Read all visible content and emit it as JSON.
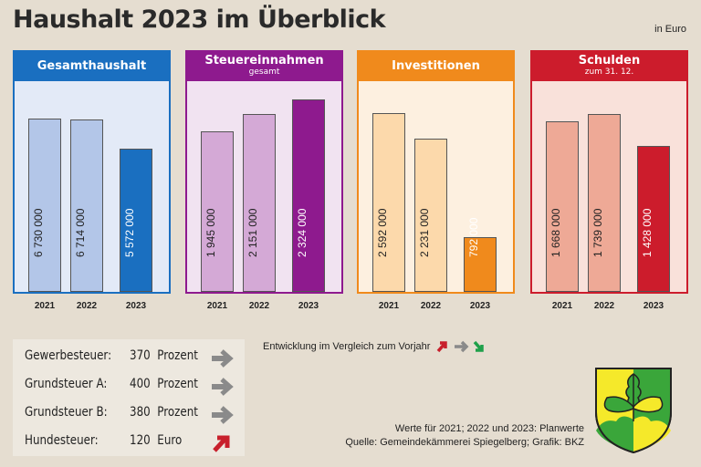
{
  "header": {
    "title": "Haushalt 2023 im Überblick",
    "unit": "in Euro"
  },
  "chart_data": [
    {
      "type": "bar",
      "title": "Gesamthaushalt",
      "subtitle": "",
      "categories": [
        "2021",
        "2022",
        "2023"
      ],
      "values": [
        6730000,
        6714000,
        5572000
      ],
      "labels": [
        "6 730 000",
        "6 714 000",
        "5 572 000"
      ],
      "ylim": [
        0,
        8200000
      ],
      "colors": {
        "header": "#1a6fc0",
        "bg": "#e3eaf7",
        "light": "#b3c6e8",
        "dark": "#1a6fc0"
      },
      "grid": false
    },
    {
      "type": "bar",
      "title": "Steuereinnahmen",
      "subtitle": "gesamt",
      "categories": [
        "2021",
        "2022",
        "2023"
      ],
      "values": [
        1945000,
        2151000,
        2324000
      ],
      "labels": [
        "1 945 000",
        "2 151 000",
        "2 324 000"
      ],
      "ylim": [
        0,
        2550000
      ],
      "colors": {
        "header": "#8e1a8e",
        "bg": "#f1e3f1",
        "light": "#d4a9d6",
        "dark": "#8e1a8e"
      },
      "grid": false
    },
    {
      "type": "bar",
      "title": "Investitionen",
      "subtitle": "",
      "categories": [
        "2021",
        "2022",
        "2023"
      ],
      "values": [
        2592000,
        2231000,
        792000
      ],
      "labels": [
        "2 592 000",
        "2 231 000",
        "792 000"
      ],
      "ylim": [
        0,
        3060000
      ],
      "colors": {
        "header": "#f08a1c",
        "bg": "#fdf0e0",
        "light": "#fcd9ab",
        "dark": "#f08a1c"
      },
      "grid": false
    },
    {
      "type": "bar",
      "title": "Schulden",
      "subtitle": "zum 31. 12.",
      "categories": [
        "2021",
        "2022",
        "2023"
      ],
      "values": [
        1668000,
        1739000,
        1428000
      ],
      "labels": [
        "1 668 000",
        "1 739 000",
        "1 428 000"
      ],
      "ylim": [
        0,
        2060000
      ],
      "colors": {
        "header": "#cc1c2c",
        "bg": "#f9e1da",
        "light": "#eea996",
        "dark": "#cc1c2c"
      },
      "grid": false
    }
  ],
  "taxes": [
    {
      "name": "Gewerbesteuer:",
      "value": "370",
      "unit": "Prozent",
      "trend": "same"
    },
    {
      "name": "Grundsteuer A:",
      "value": "400",
      "unit": "Prozent",
      "trend": "same"
    },
    {
      "name": "Grundsteuer B:",
      "value": "380",
      "unit": "Prozent",
      "trend": "same"
    },
    {
      "name": "Hundesteuer:",
      "value": "120",
      "unit": "Euro",
      "trend": "up"
    }
  ],
  "legend": {
    "text": "Entwicklung im Vergleich zum Vorjahr",
    "colors": {
      "up": "#c8202c",
      "same": "#8a8a8a",
      "down": "#1fa04a"
    }
  },
  "notes": {
    "line1": "Werte für 2021; 2022 und 2023: Planwerte",
    "line2": "Quelle: Gemeindekämmerei Spiegelberg; Grafik: BKZ"
  }
}
